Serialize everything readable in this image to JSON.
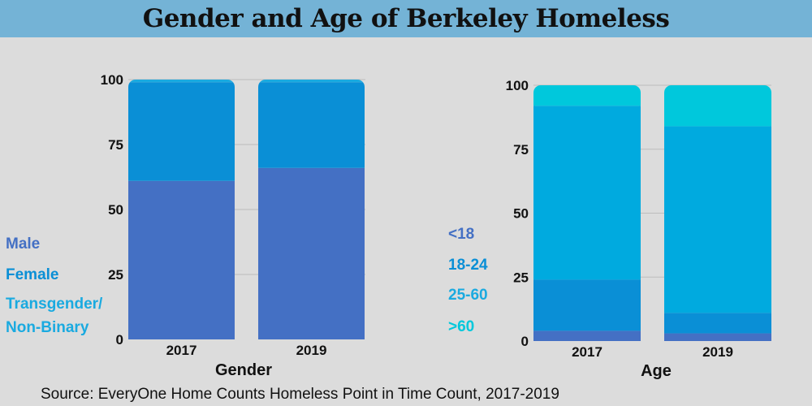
{
  "title": "Gender and Age of Berkeley Homeless",
  "source": "Source: EveryOne Home Counts Homeless Point in Time Count, 2017-2019",
  "legends": {
    "gender": [
      {
        "label": "Male",
        "color": "#4470c4"
      },
      {
        "label": "Female",
        "color": "#0a8fd6"
      },
      {
        "label": "Transgender/",
        "color": "#1aaae0"
      },
      {
        "label": "Non-Binary",
        "color": "#1aaae0"
      }
    ],
    "age": [
      {
        "label": "<18",
        "color": "#4470c4"
      },
      {
        "label": "18-24",
        "color": "#0a8fd6"
      },
      {
        "label": "25-60",
        "color": "#1aaae0"
      },
      {
        "label": ">60",
        "color": "#00c8dc"
      }
    ]
  },
  "chart_data": [
    {
      "type": "bar",
      "stacked": true,
      "xlabel": "Gender",
      "ylabel": "",
      "categories": [
        "2017",
        "2019"
      ],
      "ylim": [
        0,
        100
      ],
      "yticks": [
        0,
        25,
        50,
        75,
        100
      ],
      "grid": true,
      "series": [
        {
          "name": "Male",
          "values": [
            61,
            66
          ],
          "color": "#4470c4"
        },
        {
          "name": "Female",
          "values": [
            38,
            33
          ],
          "color": "#0a8fd6"
        },
        {
          "name": "Transgender/Non-Binary",
          "values": [
            1,
            1
          ],
          "color": "#1aaae0"
        }
      ]
    },
    {
      "type": "bar",
      "stacked": true,
      "xlabel": "Age",
      "ylabel": "",
      "categories": [
        "2017",
        "2019"
      ],
      "ylim": [
        0,
        100
      ],
      "yticks": [
        0,
        25,
        50,
        75,
        100
      ],
      "grid": true,
      "series": [
        {
          "name": "<18",
          "values": [
            4,
            3
          ],
          "color": "#4470c4"
        },
        {
          "name": "18-24",
          "values": [
            20,
            8
          ],
          "color": "#0a8fd6"
        },
        {
          "name": "25-60",
          "values": [
            68,
            73
          ],
          "color": "#00aadf"
        },
        {
          "name": ">60",
          "values": [
            8,
            16
          ],
          "color": "#00c8dc"
        }
      ]
    }
  ]
}
